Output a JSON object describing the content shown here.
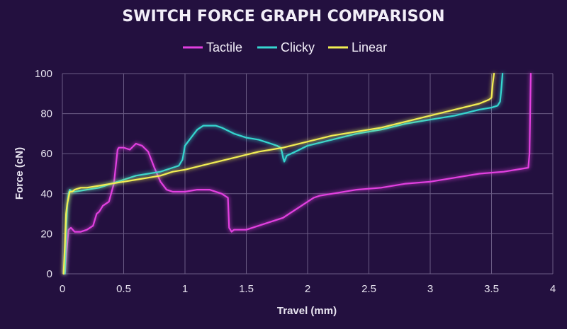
{
  "chart_data": {
    "type": "line",
    "title": "SWITCH FORCE GRAPH COMPARISON",
    "xlabel": "Travel (mm)",
    "ylabel": "Force (cN)",
    "xlim": [
      0,
      4
    ],
    "ylim": [
      0,
      100
    ],
    "xticks": [
      0,
      0.5,
      1,
      1.5,
      2,
      2.5,
      3,
      3.5,
      4
    ],
    "xtick_labels": [
      "0",
      "0.5",
      "1",
      "1.5",
      "2",
      "2.5",
      "3",
      "3.5",
      "4"
    ],
    "yticks": [
      0,
      20,
      40,
      60,
      80,
      100
    ],
    "ytick_labels": [
      "0",
      "20",
      "40",
      "60",
      "80",
      "100"
    ],
    "grid": true,
    "legend_position": "top",
    "series": [
      {
        "name": "Tactile",
        "color": "#e23fe0",
        "x": [
          0.02,
          0.04,
          0.05,
          0.07,
          0.1,
          0.15,
          0.2,
          0.25,
          0.28,
          0.3,
          0.33,
          0.38,
          0.42,
          0.45,
          0.46,
          0.48,
          0.5,
          0.55,
          0.6,
          0.65,
          0.7,
          0.75,
          0.8,
          0.85,
          0.9,
          0.95,
          1.0,
          1.1,
          1.2,
          1.3,
          1.35,
          1.36,
          1.38,
          1.4,
          1.5,
          1.6,
          1.7,
          1.8,
          1.85,
          1.9,
          1.95,
          2.0,
          2.05,
          2.1,
          2.2,
          2.4,
          2.6,
          2.8,
          3.0,
          3.2,
          3.4,
          3.6,
          3.8,
          3.81,
          3.82
        ],
        "y": [
          0,
          15,
          22,
          23,
          21,
          21,
          22,
          24,
          30,
          31,
          34,
          36,
          45,
          62,
          63,
          63,
          63,
          62,
          65,
          64,
          61,
          53,
          46,
          42,
          41,
          41,
          41,
          42,
          42,
          40,
          38,
          23,
          21,
          22,
          22,
          24,
          26,
          28,
          30,
          32,
          34,
          36,
          38,
          39,
          40,
          42,
          43,
          45,
          46,
          48,
          50,
          51,
          53,
          60,
          100
        ]
      },
      {
        "name": "Clicky",
        "color": "#36d6d0",
        "x": [
          0.02,
          0.03,
          0.04,
          0.05,
          0.06,
          0.08,
          0.1,
          0.2,
          0.3,
          0.4,
          0.5,
          0.6,
          0.7,
          0.8,
          0.9,
          0.95,
          0.98,
          1.0,
          1.05,
          1.1,
          1.15,
          1.2,
          1.25,
          1.3,
          1.4,
          1.5,
          1.6,
          1.7,
          1.75,
          1.78,
          1.79,
          1.8,
          1.81,
          1.83,
          1.9,
          2.0,
          2.2,
          2.4,
          2.6,
          2.8,
          3.0,
          3.2,
          3.4,
          3.5,
          3.55,
          3.57,
          3.58,
          3.59
        ],
        "y": [
          0,
          20,
          34,
          40,
          42,
          41,
          41,
          42,
          43,
          45,
          47,
          49,
          50,
          51,
          53,
          54,
          57,
          64,
          68,
          72,
          74,
          74,
          74,
          73,
          70,
          68,
          67,
          65,
          64,
          63,
          61,
          58,
          56,
          59,
          61,
          64,
          67,
          70,
          72,
          75,
          77,
          79,
          82,
          83,
          84,
          86,
          92,
          100
        ]
      },
      {
        "name": "Linear",
        "color": "#f2ee52",
        "x": [
          0.01,
          0.02,
          0.03,
          0.04,
          0.05,
          0.06,
          0.08,
          0.1,
          0.15,
          0.2,
          0.3,
          0.4,
          0.5,
          0.6,
          0.7,
          0.8,
          0.9,
          1.0,
          1.2,
          1.4,
          1.6,
          1.8,
          2.0,
          2.2,
          2.4,
          2.6,
          2.8,
          3.0,
          3.2,
          3.4,
          3.48,
          3.5,
          3.51,
          3.52
        ],
        "y": [
          0,
          14,
          30,
          35,
          38,
          41,
          41,
          42,
          43,
          43,
          44,
          45,
          46,
          47,
          48,
          49,
          51,
          52,
          55,
          58,
          61,
          63,
          66,
          69,
          71,
          73,
          76,
          79,
          82,
          85,
          87,
          88,
          95,
          100
        ]
      }
    ]
  }
}
